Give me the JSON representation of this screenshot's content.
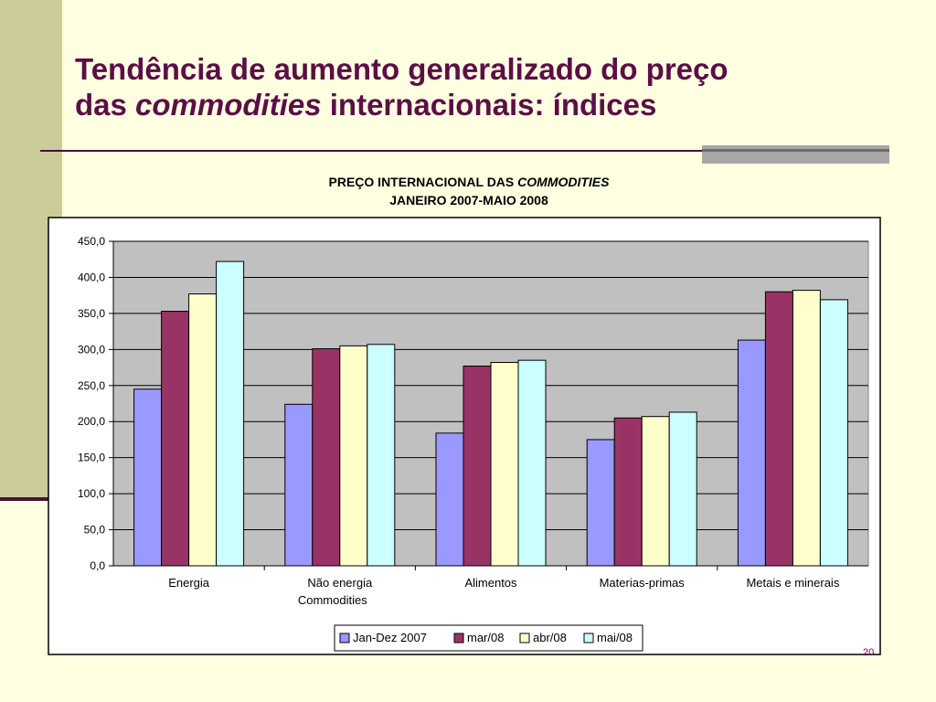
{
  "slide": {
    "title_line1": "Tendência de aumento generalizado do preço",
    "title_line2_pre": "das ",
    "title_line2_em": "commodities",
    "title_line2_post": " internacionais: índices",
    "page_number": "20"
  },
  "chart_data": {
    "type": "bar",
    "title_pre": "PREÇO INTERNACIONAL DAS ",
    "title_em": "COMMODITIES",
    "subtitle": "JANEIRO 2007-MAIO 2008",
    "categories": [
      [
        "Energia"
      ],
      [
        "Não energia",
        "Commodities"
      ],
      [
        "Alimentos"
      ],
      [
        "Materias-primas"
      ],
      [
        "Metais e minerais"
      ]
    ],
    "series": [
      {
        "name": "Jan-Dez 2007",
        "color": "#9999FF",
        "values": [
          245,
          224,
          184,
          175,
          313
        ]
      },
      {
        "name": "mar/08",
        "color": "#993366",
        "values": [
          353,
          301,
          277,
          205,
          380
        ]
      },
      {
        "name": "abr/08",
        "color": "#FFFFCC",
        "values": [
          377,
          305,
          282,
          207,
          382
        ]
      },
      {
        "name": "mai/08",
        "color": "#CCFFFF",
        "values": [
          422,
          307,
          285,
          213,
          369
        ]
      }
    ],
    "ylim": [
      0,
      450
    ],
    "yticks": [
      "0,0",
      "50,0",
      "100,0",
      "150,0",
      "200,0",
      "250,0",
      "300,0",
      "350,0",
      "400,0",
      "450,0"
    ],
    "grid": true,
    "legend_position": "bottom",
    "plot_background": "#C0C0C0"
  }
}
